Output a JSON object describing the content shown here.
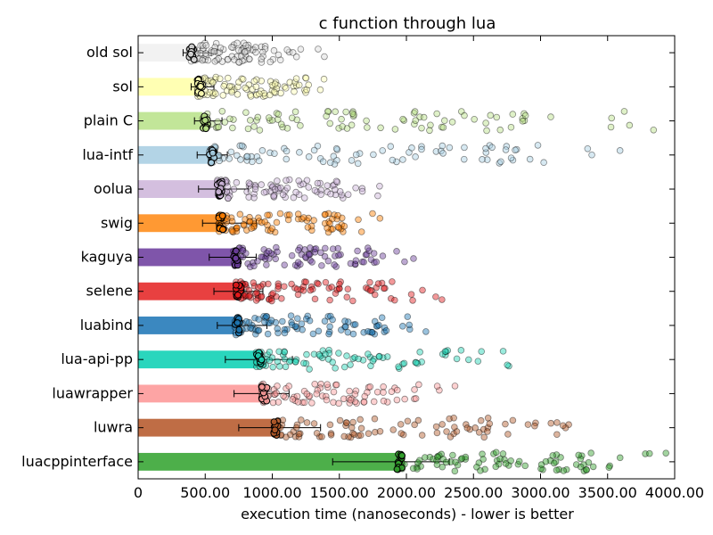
{
  "chart_data": {
    "type": "bar",
    "orientation": "horizontal",
    "title": "c function through lua",
    "xlabel": "execution time (nanoseconds) - lower is better",
    "ylabel": "",
    "xlim": [
      0,
      4000
    ],
    "x_ticks": [
      0,
      500,
      1000,
      1500,
      2000,
      2500,
      3000,
      3500,
      4000
    ],
    "x_tick_labels": [
      "0",
      "500.00",
      "1000.00",
      "1500.00",
      "2000.00",
      "2500.00",
      "3000.00",
      "3500.00",
      "4000.00"
    ],
    "grid": false,
    "legend": "none",
    "categories": [
      "old sol",
      "sol",
      "plain C",
      "lua-intf",
      "oolua",
      "swig",
      "kaguya",
      "selene",
      "luabind",
      "lua-api-pp",
      "luawrapper",
      "luwra",
      "luacppinterface"
    ],
    "values": [
      380,
      440,
      480,
      530,
      590,
      600,
      710,
      730,
      720,
      880,
      920,
      1010,
      1930
    ],
    "error_low": [
      335,
      395,
      420,
      440,
      450,
      480,
      530,
      565,
      590,
      650,
      715,
      750,
      1450
    ],
    "error_high": [
      545,
      565,
      625,
      665,
      820,
      880,
      880,
      930,
      960,
      1150,
      1125,
      1360,
      2320
    ],
    "colors": [
      "#f2f2f2",
      "#ffffb3",
      "#c2e699",
      "#b3d4e6",
      "#d4bfdf",
      "#ff9933",
      "#7f55aa",
      "#e84040",
      "#3b88c0",
      "#2ad6bd",
      "#fda4a4",
      "#bf6d45",
      "#4daf4a"
    ],
    "point_colors": [
      "#d9d9d9",
      "#ffffb3",
      "#b8e186",
      "#a6cee3",
      "#cab2d6",
      "#ff7f00",
      "#6a3d9a",
      "#e31a1c",
      "#1f78b4",
      "#1fd3b3",
      "#fb9a99",
      "#b15928",
      "#33a02c"
    ],
    "sample_ranges": [
      [
        380,
        1420
      ],
      [
        440,
        1560
      ],
      [
        480,
        3880
      ],
      [
        530,
        3880
      ],
      [
        590,
        1900
      ],
      [
        600,
        1900
      ],
      [
        710,
        2060
      ],
      [
        730,
        2320
      ],
      [
        720,
        2280
      ],
      [
        880,
        2800
      ],
      [
        920,
        2380
      ],
      [
        1010,
        3220
      ],
      [
        1930,
        3950
      ]
    ]
  }
}
